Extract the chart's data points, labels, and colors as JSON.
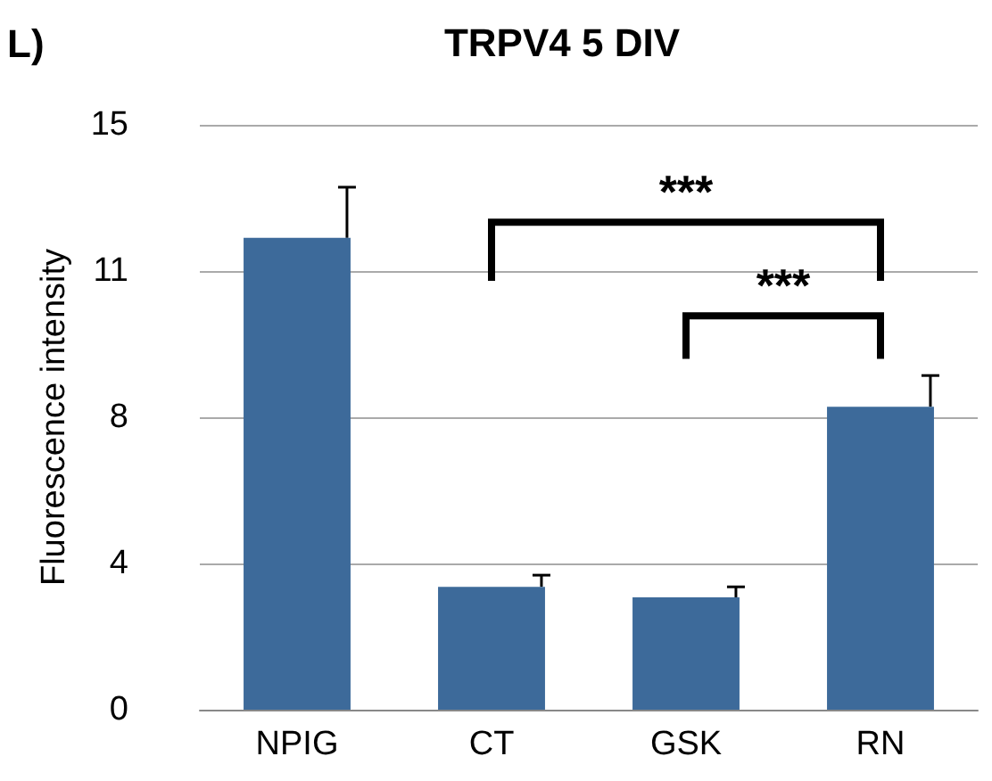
{
  "chart_data": {
    "type": "bar",
    "title": "TRPV4 5 DIV",
    "ylabel": "Fluorescence intensity",
    "categories": [
      "NPIG",
      "CT",
      "GSK",
      "RN"
    ],
    "values": [
      12.1,
      3.15,
      2.88,
      7.77
    ],
    "errors": [
      1.3,
      0.3,
      0.27,
      0.8
    ],
    "color": "#3d6a9a",
    "ylim": [
      0,
      15
    ],
    "yticks": [
      0,
      {
        "value": 3.75,
        "label": "4"
      },
      {
        "value": 7.5,
        "label": "8"
      },
      {
        "value": 11.25,
        "label": "11"
      },
      15
    ],
    "grid": "y",
    "annotations": [
      "L)",
      "***",
      "***"
    ]
  }
}
